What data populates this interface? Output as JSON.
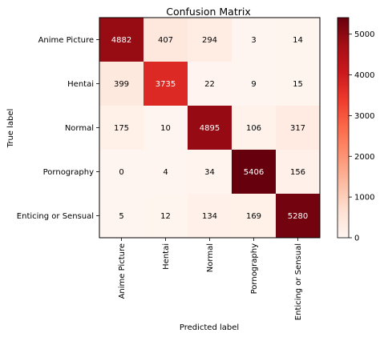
{
  "chart_data": {
    "type": "heatmap",
    "title": "Confusion Matrix",
    "xlabel": "Predicted label",
    "ylabel": "True label",
    "x_categories": [
      "Anime Picture",
      "Hentai",
      "Normal",
      "Pornography",
      "Enticing or Sensual"
    ],
    "y_categories": [
      "Anime Picture",
      "Hentai",
      "Normal",
      "Pornography",
      "Enticing or Sensual"
    ],
    "matrix": [
      [
        4882,
        407,
        294,
        3,
        14
      ],
      [
        399,
        3735,
        22,
        9,
        15
      ],
      [
        175,
        10,
        4895,
        106,
        317
      ],
      [
        0,
        4,
        34,
        5406,
        156
      ],
      [
        5,
        12,
        134,
        169,
        5280
      ]
    ],
    "colorscale": "Reds",
    "color_range": [
      0,
      5406
    ],
    "colorbar_ticks": [
      "0",
      "1000",
      "2000",
      "3000",
      "4000",
      "5000"
    ],
    "colorbar_tick_values": [
      0,
      1000,
      2000,
      3000,
      4000,
      5000
    ]
  }
}
